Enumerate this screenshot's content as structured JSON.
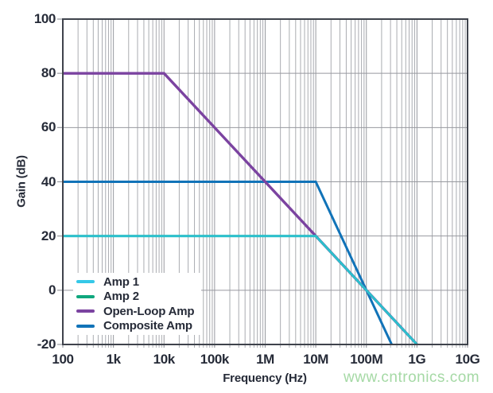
{
  "chart_data": {
    "type": "line",
    "title": "",
    "xlabel": "Frequency (Hz)",
    "ylabel": "Gain (dB)",
    "x_scale": "log",
    "x_domain": [
      100,
      10000000000
    ],
    "y_domain": [
      -20,
      100
    ],
    "x_ticks": [
      {
        "value": 100,
        "label": "100"
      },
      {
        "value": 1000,
        "label": "1k"
      },
      {
        "value": 10000,
        "label": "10k"
      },
      {
        "value": 100000,
        "label": "100k"
      },
      {
        "value": 1000000,
        "label": "1M"
      },
      {
        "value": 10000000,
        "label": "10M"
      },
      {
        "value": 100000000,
        "label": "100M"
      },
      {
        "value": 1000000000,
        "label": "1G"
      },
      {
        "value": 10000000000,
        "label": "10G"
      }
    ],
    "y_ticks": [
      {
        "value": 100,
        "label": "100"
      },
      {
        "value": 80,
        "label": "80"
      },
      {
        "value": 60,
        "label": "60"
      },
      {
        "value": 40,
        "label": "40"
      },
      {
        "value": 20,
        "label": "20"
      },
      {
        "value": 0,
        "label": "0"
      },
      {
        "value": -20,
        "label": "-20"
      }
    ],
    "grid": {
      "y_major": true,
      "x_major": true,
      "x_log_minor": true,
      "y_minor": false
    },
    "legend_position": "inside-lower-left",
    "series": [
      {
        "name": "Amp 1",
        "color": "#35c8e8",
        "points": [
          [
            100,
            20
          ],
          [
            10000000,
            20
          ],
          [
            1000000000,
            -20
          ]
        ]
      },
      {
        "name": "Amp 2",
        "color": "#0fa77d",
        "points": [
          [
            100,
            20
          ],
          [
            10000000,
            20
          ],
          [
            1000000000,
            -20
          ]
        ]
      },
      {
        "name": "Open-Loop Amp",
        "color": "#7b43a0",
        "points": [
          [
            100,
            80
          ],
          [
            10000,
            80
          ],
          [
            1000000000,
            -20
          ]
        ]
      },
      {
        "name": "Composite Amp",
        "color": "#1173b8",
        "points": [
          [
            100,
            40
          ],
          [
            10000000,
            40
          ],
          [
            316227766,
            -20
          ]
        ]
      }
    ]
  },
  "watermark": {
    "text": "www.cntronics.com",
    "color": "#a5d9a5"
  },
  "colors": {
    "background": "#ffffff",
    "plot_border": "#3f434c",
    "grid_major": "#97999f",
    "grid_minor": "#aaacb1",
    "label_text": "#262b38"
  }
}
